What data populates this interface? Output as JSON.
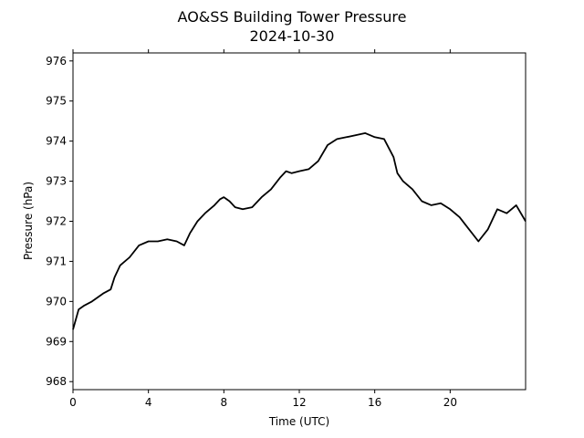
{
  "chart_data": {
    "type": "line",
    "title": "AO&SS Building Tower Pressure",
    "subtitle": "2024-10-30",
    "xlabel": "Time (UTC)",
    "ylabel": "Pressure (hPa)",
    "xlim": [
      0,
      24
    ],
    "ylim": [
      967.8,
      976.2
    ],
    "xticks": [
      0,
      4,
      8,
      12,
      16,
      20
    ],
    "yticks": [
      968,
      969,
      970,
      971,
      972,
      973,
      974,
      975,
      976
    ],
    "grid": false,
    "line_color": "#000000",
    "series": [
      {
        "x": [
          0.0,
          0.3,
          0.6,
          1.0,
          1.3,
          1.6,
          2.0,
          2.2,
          2.5,
          3.0,
          3.5,
          4.0,
          4.5,
          5.0,
          5.5,
          5.9,
          6.2,
          6.6,
          7.0,
          7.5,
          7.8,
          8.0,
          8.3,
          8.6,
          9.0,
          9.5,
          10.0,
          10.5,
          11.0,
          11.3,
          11.6,
          12.0,
          12.5,
          13.0,
          13.5,
          14.0,
          14.5,
          15.0,
          15.5,
          16.0,
          16.5,
          17.0,
          17.2,
          17.5,
          18.0,
          18.5,
          19.0,
          19.5,
          20.0,
          20.5,
          21.0,
          21.5,
          22.0,
          22.5,
          23.0,
          23.5,
          24.0
        ],
        "y": [
          969.3,
          969.8,
          969.9,
          970.0,
          970.1,
          970.2,
          970.3,
          970.6,
          970.9,
          971.1,
          971.4,
          971.5,
          971.5,
          971.55,
          971.5,
          971.4,
          971.7,
          972.0,
          972.2,
          972.4,
          972.55,
          972.6,
          972.5,
          972.35,
          972.3,
          972.35,
          972.6,
          972.8,
          973.1,
          973.25,
          973.2,
          973.25,
          973.3,
          973.5,
          973.9,
          974.05,
          974.1,
          974.15,
          974.2,
          974.1,
          974.05,
          973.6,
          973.2,
          973.0,
          972.8,
          972.5,
          972.4,
          972.45,
          972.3,
          972.1,
          971.8,
          971.5,
          971.8,
          972.3,
          972.2,
          972.4,
          972.0
        ]
      }
    ]
  }
}
